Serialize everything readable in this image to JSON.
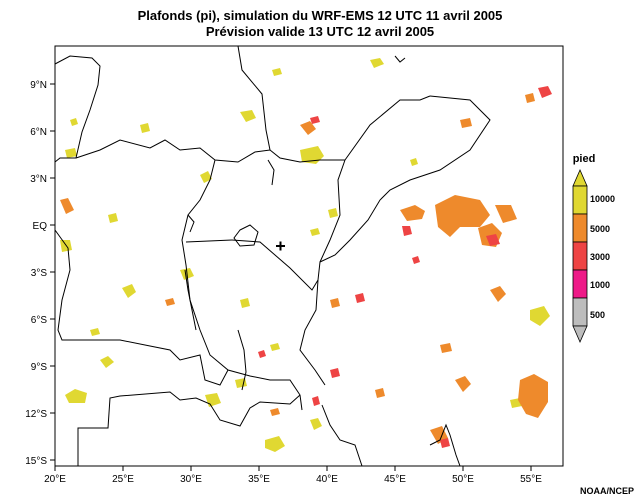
{
  "title": "Plafonds (pi), simulation du WRF-EMS 12 UTC 11 avril 2005",
  "subtitle": "Prévision valide 13 UTC 12 avril 2005",
  "credit": "NOAA/NCEP",
  "lat_labels": [
    "9°N",
    "6°N",
    "3°N",
    "EQ",
    "3°S",
    "6°S",
    "9°S",
    "12°S",
    "15°S"
  ],
  "lon_labels": [
    "20°E",
    "25°E",
    "30°E",
    "35°E",
    "40°E",
    "45°E",
    "50°E",
    "55°E"
  ],
  "legend": {
    "title": "pied",
    "classes": [
      {
        "label": "10000",
        "color": "#e0d832"
      },
      {
        "label": "5000",
        "color": "#ee8a2c"
      },
      {
        "label": "3000",
        "color": "#ee4444"
      },
      {
        "label": "1000",
        "color": "#ee1a88"
      },
      {
        "label": "500",
        "color": "#bdbdbd"
      }
    ]
  },
  "colors": {
    "yellow": "#e0d832",
    "orange": "#ee8a2c",
    "red": "#ee4444",
    "magenta": "#ee1a88",
    "grey": "#bdbdbd"
  }
}
